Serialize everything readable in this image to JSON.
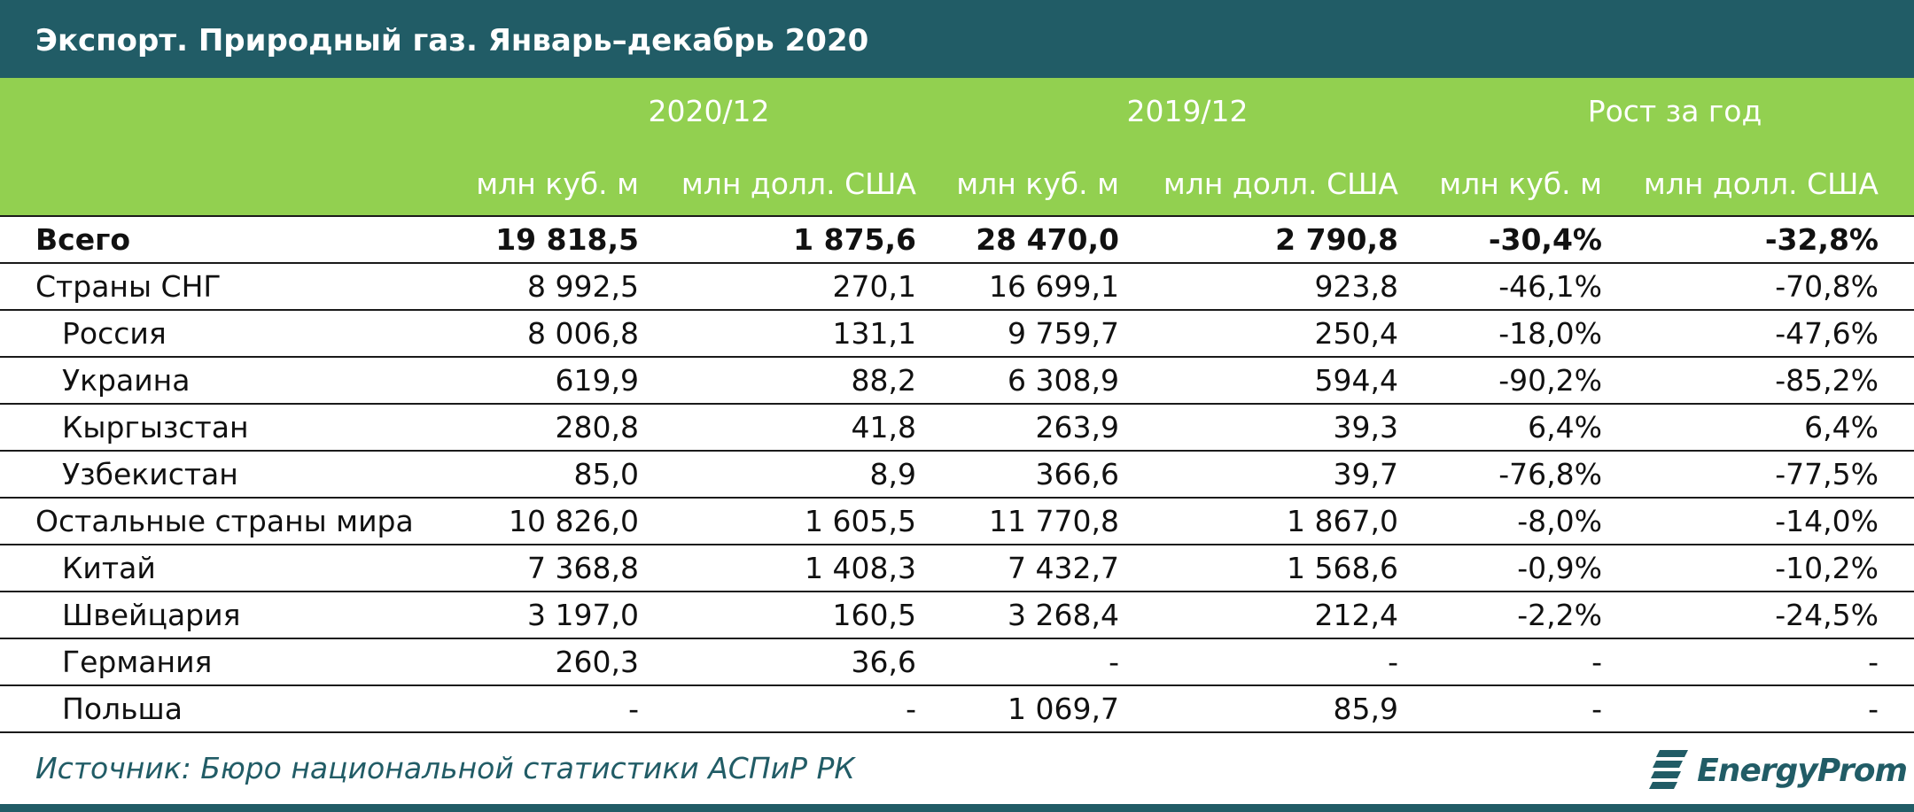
{
  "title": "Экспорт. Природный газ. Январь–декабрь 2020",
  "column_groups": [
    "2020/12",
    "2019/12",
    "Рост за год"
  ],
  "sub_headers": [
    "млн куб. м",
    "млн долл. США",
    "млн куб. м",
    "млн долл. США",
    "млн куб. м",
    "млн долл. США"
  ],
  "rows": [
    {
      "label": "Всего",
      "values": [
        "19 818,5",
        "1 875,6",
        "28 470,0",
        "2 790,8",
        "-30,4%",
        "-32,8%"
      ]
    },
    {
      "label": "Страны СНГ",
      "values": [
        "8 992,5",
        "270,1",
        "16 699,1",
        "923,8",
        "-46,1%",
        "-70,8%"
      ]
    },
    {
      "label": "Россия",
      "values": [
        "8 006,8",
        "131,1",
        "9 759,7",
        "250,4",
        "-18,0%",
        "-47,6%"
      ]
    },
    {
      "label": "Украина",
      "values": [
        "619,9",
        "88,2",
        "6 308,9",
        "594,4",
        "-90,2%",
        "-85,2%"
      ]
    },
    {
      "label": "Кыргызстан",
      "values": [
        "280,8",
        "41,8",
        "263,9",
        "39,3",
        "6,4%",
        "6,4%"
      ]
    },
    {
      "label": "Узбекистан",
      "values": [
        "85,0",
        "8,9",
        "366,6",
        "39,7",
        "-76,8%",
        "-77,5%"
      ]
    },
    {
      "label": "Остальные страны мира",
      "values": [
        "10 826,0",
        "1 605,5",
        "11 770,8",
        "1 867,0",
        "-8,0%",
        "-14,0%"
      ]
    },
    {
      "label": "Китай",
      "values": [
        "7 368,8",
        "1 408,3",
        "7 432,7",
        "1 568,6",
        "-0,9%",
        "-10,2%"
      ]
    },
    {
      "label": "Швейцария",
      "values": [
        "3 197,0",
        "160,5",
        "3 268,4",
        "212,4",
        "-2,2%",
        "-24,5%"
      ]
    },
    {
      "label": "Германия",
      "values": [
        "260,3",
        "36,6",
        "-",
        "-",
        "-",
        "-"
      ]
    },
    {
      "label": "Польша",
      "values": [
        "-",
        "-",
        "1 069,7",
        "85,9",
        "-",
        "-"
      ]
    }
  ],
  "source": "Источник: Бюро национальной статистики АСПиР РК",
  "logo_text": "EnergyProm",
  "colors": {
    "title_bg": "#215c66",
    "header_bg": "#92d050",
    "text_accent": "#215c66"
  }
}
